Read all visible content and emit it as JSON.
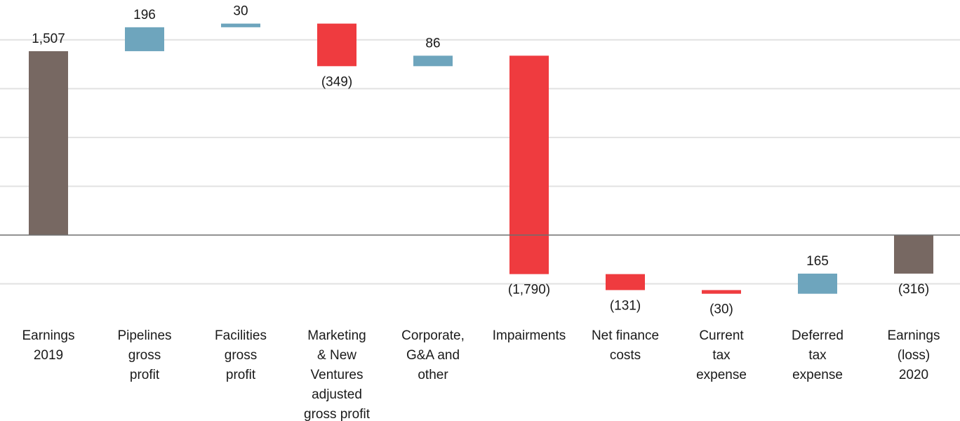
{
  "chart_data": {
    "type": "bar",
    "subtype": "waterfall",
    "categories": [
      [
        "Earnings",
        "2019"
      ],
      [
        "Pipelines",
        "gross",
        "profit"
      ],
      [
        "Facilities",
        "gross",
        "profit"
      ],
      [
        "Marketing",
        "& New",
        "Ventures",
        "adjusted",
        "gross profit"
      ],
      [
        "Corporate,",
        "G&A and",
        "other"
      ],
      [
        "Impairments"
      ],
      [
        "Net finance",
        "costs"
      ],
      [
        "Current",
        "tax",
        "expense"
      ],
      [
        "Deferred",
        "tax",
        "expense"
      ],
      [
        "Earnings",
        "(loss)",
        "2020"
      ]
    ],
    "values": [
      1507,
      196,
      30,
      -349,
      86,
      -1790,
      -131,
      -30,
      165,
      -316
    ],
    "value_labels": [
      "1,507",
      "196",
      "30",
      "(349)",
      "86",
      "(1,790)",
      "(131)",
      "(30)",
      "165",
      "(316)"
    ],
    "kinds": [
      "total",
      "delta",
      "delta",
      "delta",
      "delta",
      "delta",
      "delta",
      "delta",
      "delta",
      "total"
    ],
    "ylim": [
      -400,
      1900
    ],
    "gridlines": [
      -400,
      400,
      800,
      1200,
      1600
    ],
    "grid": true,
    "legend": "none",
    "title": "",
    "xlabel": "",
    "ylabel": "",
    "colors": {
      "total": "#776862",
      "increase": "#6ea5bd",
      "decrease": "#ef3b3f",
      "grid": "#e2e2e2",
      "axis": "#6f6f6f"
    }
  }
}
